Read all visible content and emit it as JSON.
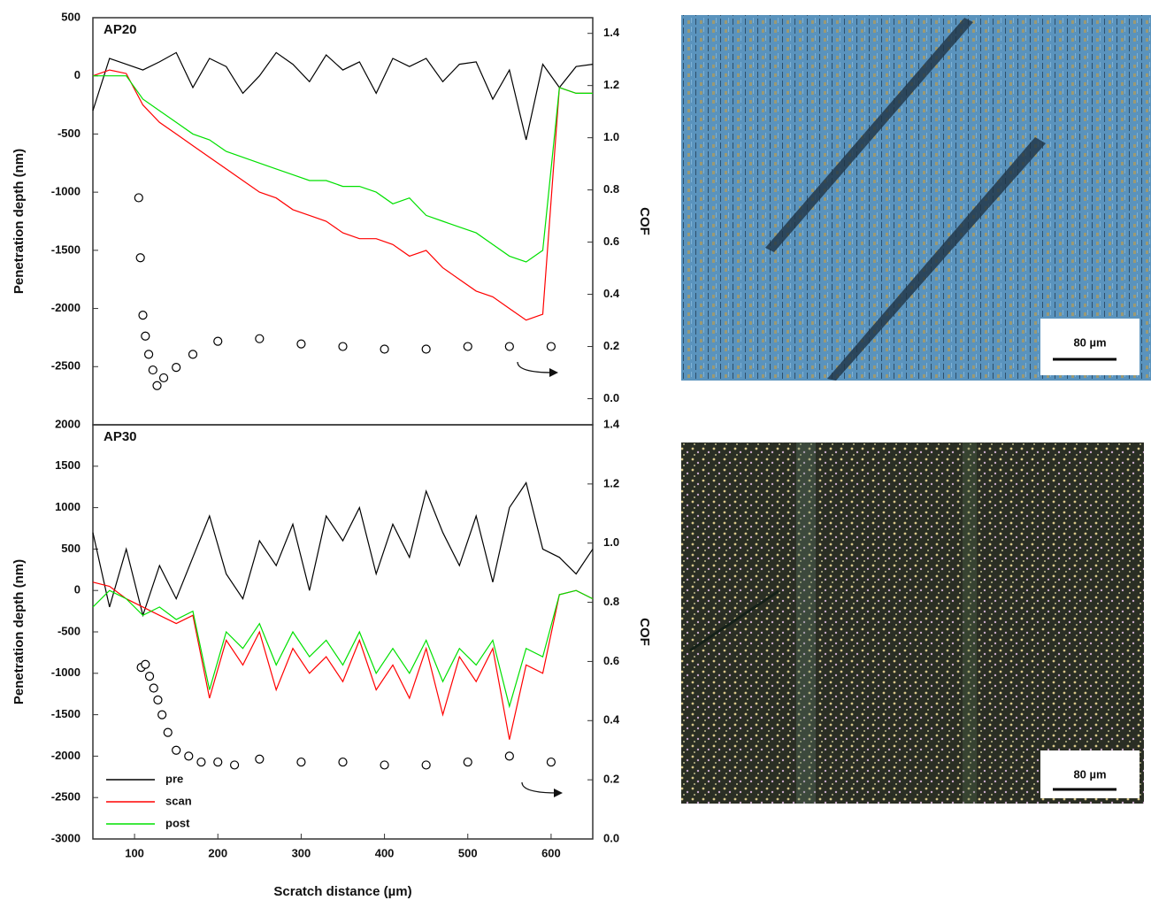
{
  "chart_data": [
    {
      "type": "line",
      "panel_label": "AP20",
      "y_label": "Penetration depth  (nm)",
      "y2_label": "COF",
      "xlim": [
        50,
        650
      ],
      "ylim": [
        -3000,
        500
      ],
      "yticks": [
        500,
        0,
        -500,
        -1000,
        -1500,
        -2000,
        -2500
      ],
      "y2lim": [
        -0.1,
        1.46
      ],
      "y2ticks": [
        {
          "value": 0,
          "label": "0.0"
        },
        0.2,
        0.4,
        0.6,
        0.8,
        {
          "value": 1,
          "label": "1.0"
        },
        1.2,
        1.4
      ],
      "x": [
        50,
        70,
        90,
        110,
        130,
        150,
        170,
        190,
        210,
        230,
        250,
        270,
        290,
        310,
        330,
        350,
        370,
        390,
        410,
        430,
        450,
        470,
        490,
        510,
        530,
        550,
        570,
        590,
        610,
        630,
        650
      ],
      "series": [
        {
          "color": "#000000",
          "values": [
            -300,
            150,
            100,
            50,
            120,
            200,
            -100,
            150,
            80,
            -150,
            0,
            200,
            100,
            -50,
            180,
            50,
            120,
            -150,
            150,
            80,
            150,
            -50,
            100,
            120,
            -200,
            50,
            -550,
            100,
            -100,
            80,
            100
          ]
        },
        {
          "color": "#ff0000",
          "values": [
            0,
            50,
            20,
            -250,
            -400,
            -500,
            -600,
            -700,
            -800,
            -900,
            -1000,
            -1050,
            -1150,
            -1200,
            -1250,
            -1350,
            -1400,
            -1400,
            -1450,
            -1550,
            -1500,
            -1650,
            -1750,
            -1850,
            -1900,
            -2000,
            -2100,
            -2050,
            -100,
            -150,
            -150
          ]
        },
        {
          "color": "#00e000",
          "values": [
            0,
            0,
            0,
            -200,
            -300,
            -400,
            -500,
            -550,
            -650,
            -700,
            -750,
            -800,
            -850,
            -900,
            -900,
            -950,
            -950,
            -1000,
            -1100,
            -1050,
            -1200,
            -1250,
            -1300,
            -1350,
            -1450,
            -1550,
            -1600,
            -1500,
            -100,
            -150,
            -150
          ]
        },
        {
          "color": "#000000",
          "axis": "y2",
          "marker": "circle",
          "x": [
            105,
            107,
            110,
            113,
            117,
            122,
            127,
            135,
            150,
            170,
            200,
            250,
            300,
            350,
            400,
            450,
            500,
            550,
            600
          ],
          "values": [
            0.77,
            0.54,
            0.32,
            0.24,
            0.17,
            0.11,
            0.05,
            0.08,
            0.12,
            0.17,
            0.22,
            0.23,
            0.21,
            0.2,
            0.19,
            0.19,
            0.2,
            0.2,
            0.2
          ]
        }
      ]
    },
    {
      "type": "line",
      "panel_label": "AP30",
      "y_label": "Penetration depth  (nm)",
      "y2_label": "COF",
      "x_label": "Scratch distance  (µm)",
      "xlim": [
        50,
        650
      ],
      "xticks": [
        100,
        200,
        300,
        400,
        500,
        600
      ],
      "ylim": [
        -3000,
        2000
      ],
      "yticks": [
        2000,
        1500,
        1000,
        500,
        0,
        -500,
        -1000,
        -1500,
        -2000,
        -2500,
        -3000
      ],
      "y2lim": [
        0,
        1.4
      ],
      "y2ticks": [
        {
          "value": 0,
          "label": "0.0"
        },
        0.2,
        0.4,
        0.6,
        0.8,
        {
          "value": 1,
          "label": "1.0"
        },
        1.2,
        1.4
      ],
      "legend": "lower left",
      "x": [
        50,
        70,
        90,
        110,
        130,
        150,
        170,
        190,
        210,
        230,
        250,
        270,
        290,
        310,
        330,
        350,
        370,
        390,
        410,
        430,
        450,
        470,
        490,
        510,
        530,
        550,
        570,
        590,
        610,
        630,
        650
      ],
      "series": [
        {
          "name": "pre",
          "color": "#000000",
          "values": [
            700,
            -200,
            500,
            -300,
            300,
            -100,
            400,
            900,
            200,
            -100,
            600,
            300,
            800,
            0,
            900,
            600,
            1000,
            200,
            800,
            400,
            1200,
            700,
            300,
            900,
            100,
            1000,
            1300,
            500,
            400,
            200,
            500
          ]
        },
        {
          "name": "scan",
          "color": "#ff0000",
          "values": [
            100,
            50,
            -100,
            -200,
            -300,
            -400,
            -300,
            -1300,
            -600,
            -900,
            -500,
            -1200,
            -700,
            -1000,
            -800,
            -1100,
            -600,
            -1200,
            -900,
            -1300,
            -700,
            -1500,
            -800,
            -1100,
            -700,
            -1800,
            -900,
            -1000,
            -50,
            0,
            -100
          ]
        },
        {
          "name": "post",
          "color": "#00e000",
          "values": [
            -200,
            0,
            -100,
            -300,
            -200,
            -350,
            -250,
            -1200,
            -500,
            -700,
            -400,
            -900,
            -500,
            -800,
            -600,
            -900,
            -500,
            -1000,
            -700,
            -1000,
            -600,
            -1100,
            -700,
            -900,
            -600,
            -1400,
            -700,
            -800,
            -50,
            0,
            -100
          ]
        },
        {
          "color": "#000000",
          "axis": "y2",
          "marker": "circle",
          "x": [
            108,
            113,
            118,
            123,
            128,
            133,
            140,
            150,
            165,
            180,
            200,
            220,
            250,
            300,
            350,
            400,
            450,
            500,
            550,
            600
          ],
          "values": [
            0.58,
            0.59,
            0.55,
            0.51,
            0.47,
            0.42,
            0.36,
            0.3,
            0.28,
            0.26,
            0.26,
            0.25,
            0.27,
            0.26,
            0.26,
            0.25,
            0.25,
            0.26,
            0.28,
            0.26
          ]
        }
      ]
    }
  ],
  "micrographs": [
    {
      "scale_bar": "80 µm"
    },
    {
      "scale_bar": "80 µm"
    }
  ]
}
